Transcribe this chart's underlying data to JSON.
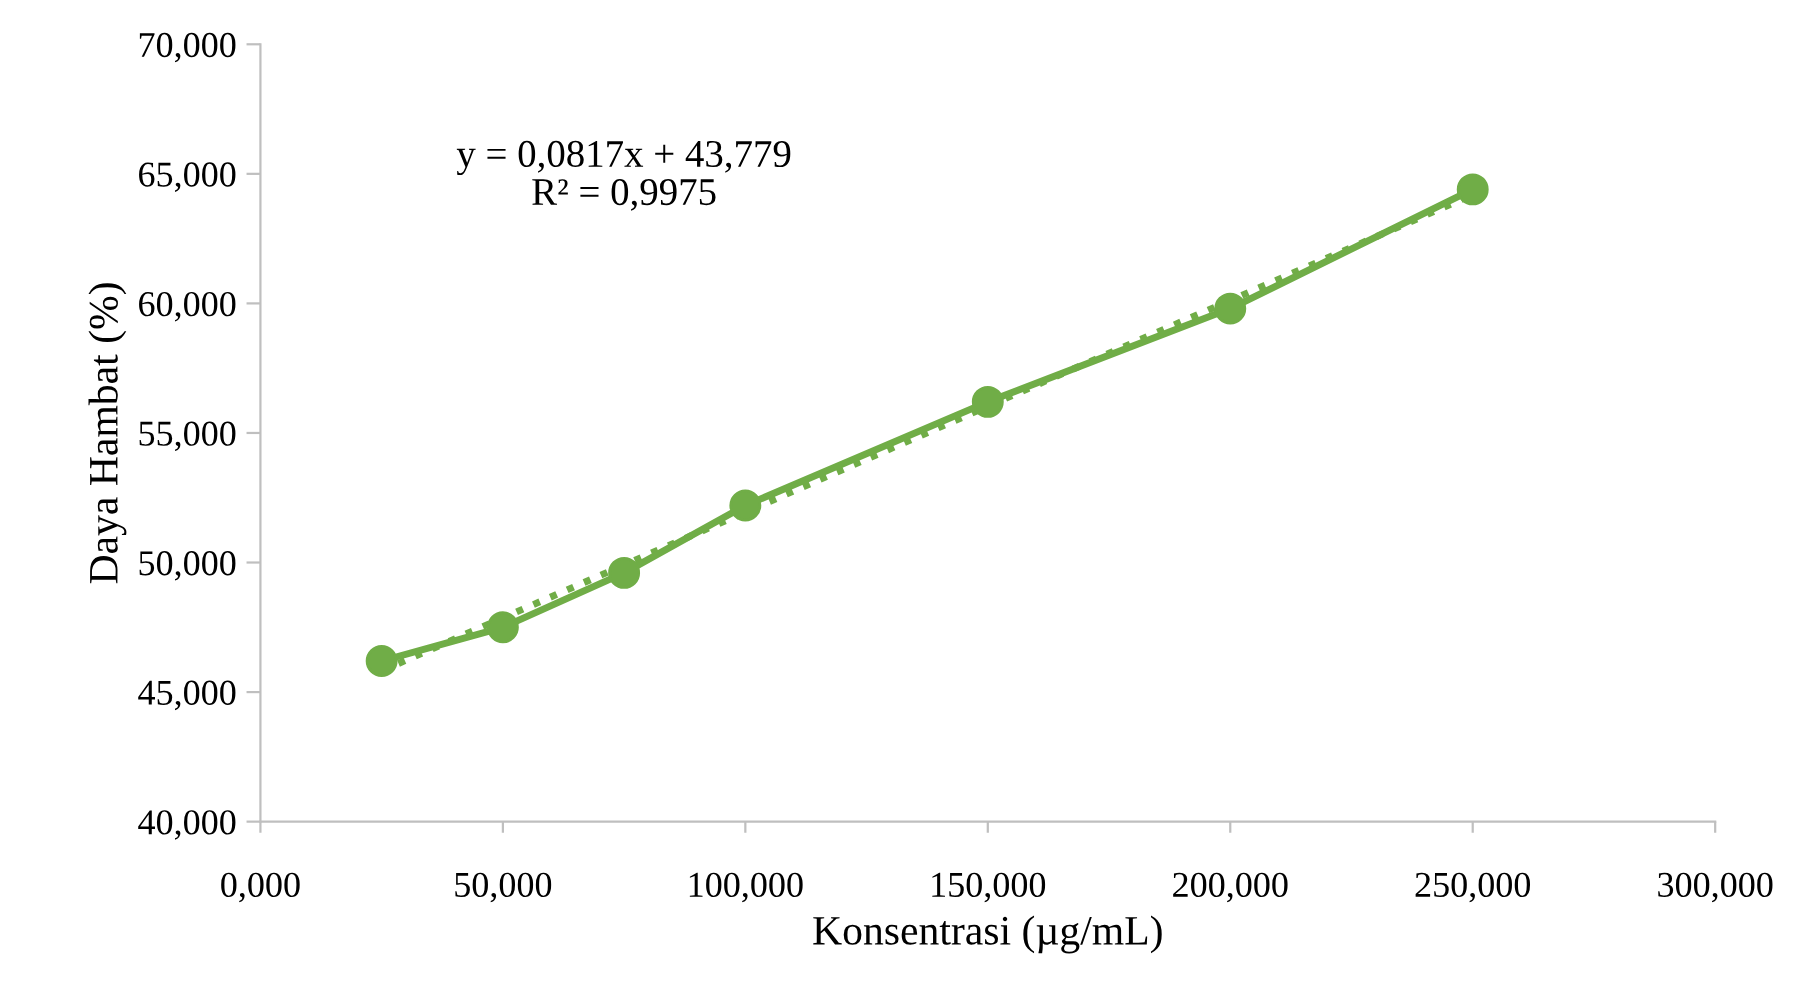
{
  "chart_data": {
    "type": "line",
    "xlabel": "Konsentrasi (µg/mL)",
    "ylabel": "Daya Hambat (%)",
    "annotations": [
      "y = 0,0817x + 43,779\nR² = 0,9975"
    ],
    "xlim": [
      0,
      300
    ],
    "ylim": [
      40,
      70
    ],
    "xticks": [
      {
        "value": 0,
        "label": "0,000"
      },
      {
        "value": 50,
        "label": "50,000"
      },
      {
        "value": 100,
        "label": "100,000"
      },
      {
        "value": 150,
        "label": "150,000"
      },
      {
        "value": 200,
        "label": "200,000"
      },
      {
        "value": 250,
        "label": "250,000"
      },
      {
        "value": 300,
        "label": "300,000"
      }
    ],
    "yticks": [
      {
        "value": 40,
        "label": "40,000"
      },
      {
        "value": 45,
        "label": "45,000"
      },
      {
        "value": 50,
        "label": "50,000"
      },
      {
        "value": 55,
        "label": "55,000"
      },
      {
        "value": 60,
        "label": "60,000"
      },
      {
        "value": 65,
        "label": "65,000"
      },
      {
        "value": 70,
        "label": "70,000"
      }
    ],
    "grid": false,
    "legend": false,
    "series": [
      {
        "color": "#70ad47",
        "marker": "circle",
        "line_style": "solid",
        "x": [
          25,
          50,
          75,
          100,
          150,
          200,
          250
        ],
        "values": [
          46.2,
          47.5,
          49.6,
          52.2,
          56.2,
          59.8,
          64.4
        ]
      },
      {
        "color": "#70ad47",
        "marker": "none",
        "line_style": "dotted",
        "x": [
          25,
          250
        ],
        "values": [
          45.82,
          64.2
        ]
      }
    ]
  }
}
